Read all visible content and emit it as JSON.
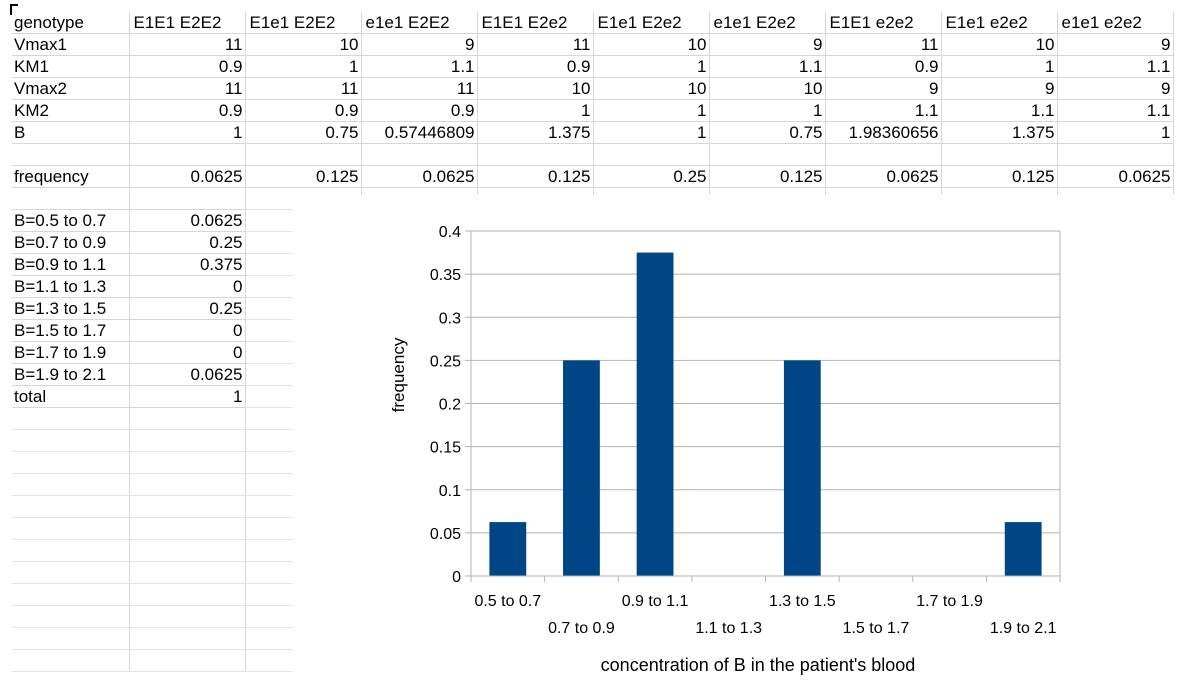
{
  "spreadsheet": {
    "rows": [
      [
        "genotype",
        "E1E1 E2E2",
        "E1e1 E2E2",
        "e1e1 E2E2",
        "E1E1 E2e2",
        "E1e1 E2e2",
        "e1e1 E2e2",
        "E1E1 e2e2",
        "E1e1 e2e2",
        "e1e1 e2e2"
      ],
      [
        "Vmax1",
        "11",
        "10",
        "9",
        "11",
        "10",
        "9",
        "11",
        "10",
        "9"
      ],
      [
        "KM1",
        "0.9",
        "1",
        "1.1",
        "0.9",
        "1",
        "1.1",
        "0.9",
        "1",
        "1.1"
      ],
      [
        "Vmax2",
        "11",
        "11",
        "11",
        "10",
        "10",
        "10",
        "9",
        "9",
        "9"
      ],
      [
        "KM2",
        "0.9",
        "0.9",
        "0.9",
        "1",
        "1",
        "1",
        "1.1",
        "1.1",
        "1.1"
      ],
      [
        "B",
        "1",
        "0.75",
        "0.57446809",
        "1.375",
        "1",
        "0.75",
        "1.98360656",
        "1.375",
        "1"
      ],
      [
        "",
        "",
        "",
        "",
        "",
        "",
        "",
        "",
        "",
        ""
      ],
      [
        "frequency",
        "0.0625",
        "0.125",
        "0.0625",
        "0.125",
        "0.25",
        "0.125",
        "0.0625",
        "0.125",
        "0.0625"
      ],
      [
        "",
        "",
        "",
        "",
        "",
        "",
        "",
        "",
        "",
        ""
      ],
      [
        "B=0.5 to 0.7",
        "0.0625",
        "",
        "",
        "",
        "",
        "",
        "",
        "",
        ""
      ],
      [
        "B=0.7 to 0.9",
        "0.25",
        "",
        "",
        "",
        "",
        "",
        "",
        "",
        ""
      ],
      [
        "B=0.9 to 1.1",
        "0.375",
        "",
        "",
        "",
        "",
        "",
        "",
        "",
        ""
      ],
      [
        "B=1.1 to 1.3",
        "0",
        "",
        "",
        "",
        "",
        "",
        "",
        "",
        ""
      ],
      [
        "B=1.3 to 1.5",
        "0.25",
        "",
        "",
        "",
        "",
        "",
        "",
        "",
        ""
      ],
      [
        "B=1.5 to 1.7",
        "0",
        "",
        "",
        "",
        "",
        "",
        "",
        "",
        ""
      ],
      [
        "B=1.7 to 1.9",
        "0",
        "",
        "",
        "",
        "",
        "",
        "",
        "",
        ""
      ],
      [
        "B=1.9 to 2.1",
        "0.0625",
        "",
        "",
        "",
        "",
        "",
        "",
        "",
        ""
      ],
      [
        "total",
        "1",
        "",
        "",
        "",
        "",
        "",
        "",
        "",
        ""
      ]
    ]
  },
  "colors": {
    "bar": "#004586",
    "grid": "#b3b3b3",
    "cell_border": "#d6d6d6"
  },
  "chart_data": {
    "type": "bar",
    "categories": [
      "0.5 to 0.7",
      "0.7 to 0.9",
      "0.9 to 1.1",
      "1.1 to 1.3",
      "1.3 to 1.5",
      "1.5 to 1.7",
      "1.7 to 1.9",
      "1.9 to 2.1"
    ],
    "values": [
      0.0625,
      0.25,
      0.375,
      0,
      0.25,
      0,
      0,
      0.0625
    ],
    "title": "",
    "xlabel": "concentration of B in the patient's blood",
    "ylabel": "frequency",
    "ylim": [
      0,
      0.4
    ],
    "yticks": [
      "0",
      "0.05",
      "0.1",
      "0.15",
      "0.2",
      "0.25",
      "0.3",
      "0.35",
      "0.4"
    ],
    "grid": true,
    "legend": "none"
  }
}
